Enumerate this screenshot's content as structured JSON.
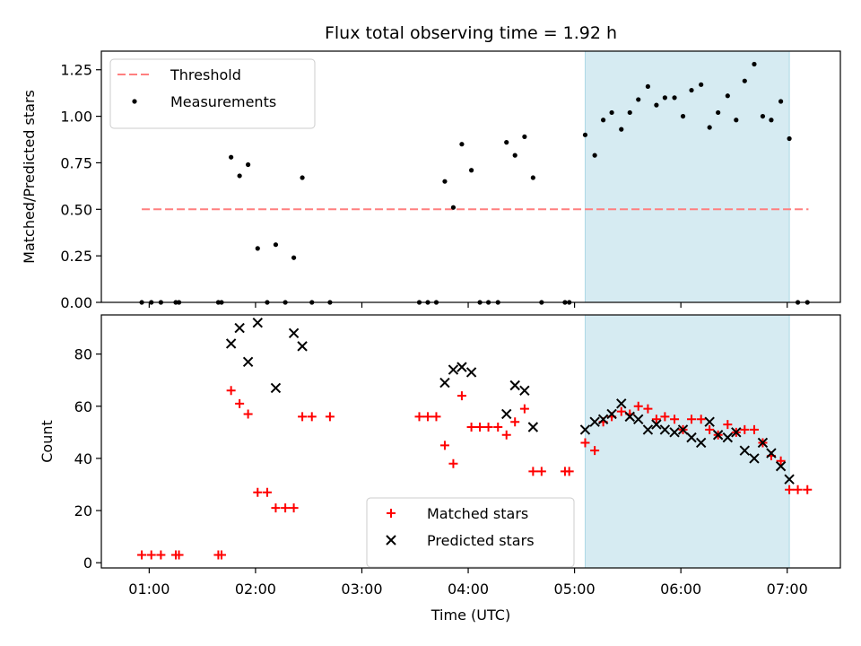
{
  "chart_data": {
    "title": "Flux total observing time = 1.92 h",
    "xlabel": "Time (UTC)",
    "x_ticks": [
      "01:00",
      "02:00",
      "03:00",
      "04:00",
      "05:00",
      "06:00",
      "07:00"
    ],
    "x_tick_hours": [
      1,
      2,
      3,
      4,
      5,
      6,
      7
    ],
    "xlim": [
      0.55,
      7.5
    ],
    "highlight_span": [
      5.1,
      7.02
    ],
    "colors": {
      "threshold": "#ff7f7f",
      "measurements": "#000000",
      "matched": "#ff0000",
      "predicted": "#000000",
      "highlight": "#add8e6"
    },
    "panels": [
      {
        "type": "scatter",
        "ylabel": "Matched/Predicted stars",
        "ylim": [
          0,
          1.35
        ],
        "y_ticks": [
          0.0,
          0.25,
          0.5,
          0.75,
          1.0,
          1.25
        ],
        "y_tick_labels": [
          "0.00",
          "0.25",
          "0.50",
          "0.75",
          "1.00",
          "1.25"
        ],
        "legend_position": "upper-left",
        "threshold": {
          "name": "Threshold",
          "value": 0.5,
          "x_range": [
            0.93,
            7.2
          ]
        },
        "series": [
          {
            "name": "Measurements",
            "marker": "dot",
            "points": [
              [
                0.93,
                0
              ],
              [
                1.02,
                0
              ],
              [
                1.11,
                0
              ],
              [
                1.25,
                0
              ],
              [
                1.28,
                0
              ],
              [
                1.65,
                0
              ],
              [
                1.68,
                0
              ],
              [
                1.77,
                0.78
              ],
              [
                1.85,
                0.68
              ],
              [
                1.93,
                0.74
              ],
              [
                2.02,
                0.29
              ],
              [
                2.11,
                0
              ],
              [
                2.19,
                0.31
              ],
              [
                2.28,
                0
              ],
              [
                2.36,
                0.24
              ],
              [
                2.44,
                0.67
              ],
              [
                2.53,
                0
              ],
              [
                2.7,
                0
              ],
              [
                3.54,
                0
              ],
              [
                3.62,
                0
              ],
              [
                3.7,
                0
              ],
              [
                3.78,
                0.65
              ],
              [
                3.86,
                0.51
              ],
              [
                3.94,
                0.85
              ],
              [
                4.03,
                0.71
              ],
              [
                4.11,
                0
              ],
              [
                4.19,
                0
              ],
              [
                4.28,
                0
              ],
              [
                4.36,
                0.86
              ],
              [
                4.44,
                0.79
              ],
              [
                4.53,
                0.89
              ],
              [
                4.61,
                0.67
              ],
              [
                4.69,
                0
              ],
              [
                4.91,
                0
              ],
              [
                4.95,
                0
              ],
              [
                5.1,
                0.9
              ],
              [
                5.19,
                0.79
              ],
              [
                5.27,
                0.98
              ],
              [
                5.35,
                1.02
              ],
              [
                5.44,
                0.93
              ],
              [
                5.52,
                1.02
              ],
              [
                5.6,
                1.09
              ],
              [
                5.69,
                1.16
              ],
              [
                5.77,
                1.06
              ],
              [
                5.85,
                1.1
              ],
              [
                5.94,
                1.1
              ],
              [
                6.02,
                1.0
              ],
              [
                6.1,
                1.14
              ],
              [
                6.19,
                1.17
              ],
              [
                6.27,
                0.94
              ],
              [
                6.35,
                1.02
              ],
              [
                6.44,
                1.11
              ],
              [
                6.52,
                0.98
              ],
              [
                6.6,
                1.19
              ],
              [
                6.69,
                1.28
              ],
              [
                6.77,
                1.0
              ],
              [
                6.85,
                0.98
              ],
              [
                6.94,
                1.08
              ],
              [
                7.02,
                0.88
              ],
              [
                7.1,
                0
              ],
              [
                7.19,
                0
              ]
            ]
          }
        ]
      },
      {
        "type": "scatter",
        "ylabel": "Count",
        "ylim": [
          -2,
          95
        ],
        "y_ticks": [
          0,
          20,
          40,
          60,
          80
        ],
        "y_tick_labels": [
          "0",
          "20",
          "40",
          "60",
          "80"
        ],
        "legend_position": "lower-center",
        "series": [
          {
            "name": "Matched stars",
            "marker": "plus",
            "points": [
              [
                0.93,
                3
              ],
              [
                1.02,
                3
              ],
              [
                1.11,
                3
              ],
              [
                1.25,
                3
              ],
              [
                1.28,
                3
              ],
              [
                1.65,
                3
              ],
              [
                1.68,
                3
              ],
              [
                1.77,
                66
              ],
              [
                1.85,
                61
              ],
              [
                1.93,
                57
              ],
              [
                2.02,
                27
              ],
              [
                2.11,
                27
              ],
              [
                2.19,
                21
              ],
              [
                2.28,
                21
              ],
              [
                2.36,
                21
              ],
              [
                2.44,
                56
              ],
              [
                2.53,
                56
              ],
              [
                2.7,
                56
              ],
              [
                3.54,
                56
              ],
              [
                3.62,
                56
              ],
              [
                3.7,
                56
              ],
              [
                3.78,
                45
              ],
              [
                3.86,
                38
              ],
              [
                3.94,
                64
              ],
              [
                4.03,
                52
              ],
              [
                4.11,
                52
              ],
              [
                4.19,
                52
              ],
              [
                4.28,
                52
              ],
              [
                4.36,
                49
              ],
              [
                4.44,
                54
              ],
              [
                4.53,
                59
              ],
              [
                4.61,
                35
              ],
              [
                4.69,
                35
              ],
              [
                4.91,
                35
              ],
              [
                4.95,
                35
              ],
              [
                5.1,
                46
              ],
              [
                5.19,
                43
              ],
              [
                5.27,
                54
              ],
              [
                5.35,
                56
              ],
              [
                5.44,
                58
              ],
              [
                5.52,
                57
              ],
              [
                5.6,
                60
              ],
              [
                5.69,
                59
              ],
              [
                5.77,
                55
              ],
              [
                5.85,
                56
              ],
              [
                5.94,
                55
              ],
              [
                6.02,
                51
              ],
              [
                6.1,
                55
              ],
              [
                6.19,
                55
              ],
              [
                6.27,
                51
              ],
              [
                6.35,
                49
              ],
              [
                6.44,
                53
              ],
              [
                6.52,
                50
              ],
              [
                6.6,
                51
              ],
              [
                6.69,
                51
              ],
              [
                6.77,
                46
              ],
              [
                6.85,
                41
              ],
              [
                6.94,
                39
              ],
              [
                7.02,
                28
              ],
              [
                7.1,
                28
              ],
              [
                7.19,
                28
              ]
            ]
          },
          {
            "name": "Predicted stars",
            "marker": "x",
            "points": [
              [
                1.77,
                84
              ],
              [
                1.85,
                90
              ],
              [
                1.93,
                77
              ],
              [
                2.02,
                92
              ],
              [
                2.19,
                67
              ],
              [
                2.36,
                88
              ],
              [
                2.44,
                83
              ],
              [
                3.78,
                69
              ],
              [
                3.86,
                74
              ],
              [
                3.94,
                75
              ],
              [
                4.03,
                73
              ],
              [
                4.36,
                57
              ],
              [
                4.44,
                68
              ],
              [
                4.53,
                66
              ],
              [
                4.61,
                52
              ],
              [
                5.1,
                51
              ],
              [
                5.19,
                54
              ],
              [
                5.27,
                55
              ],
              [
                5.35,
                57
              ],
              [
                5.44,
                61
              ],
              [
                5.52,
                56
              ],
              [
                5.6,
                55
              ],
              [
                5.69,
                51
              ],
              [
                5.77,
                53
              ],
              [
                5.85,
                51
              ],
              [
                5.94,
                50
              ],
              [
                6.02,
                51
              ],
              [
                6.1,
                48
              ],
              [
                6.19,
                46
              ],
              [
                6.27,
                54
              ],
              [
                6.35,
                49
              ],
              [
                6.44,
                48
              ],
              [
                6.52,
                50
              ],
              [
                6.6,
                43
              ],
              [
                6.69,
                40
              ],
              [
                6.77,
                46
              ],
              [
                6.85,
                42
              ],
              [
                6.94,
                37
              ],
              [
                7.02,
                32
              ]
            ]
          }
        ]
      }
    ]
  }
}
